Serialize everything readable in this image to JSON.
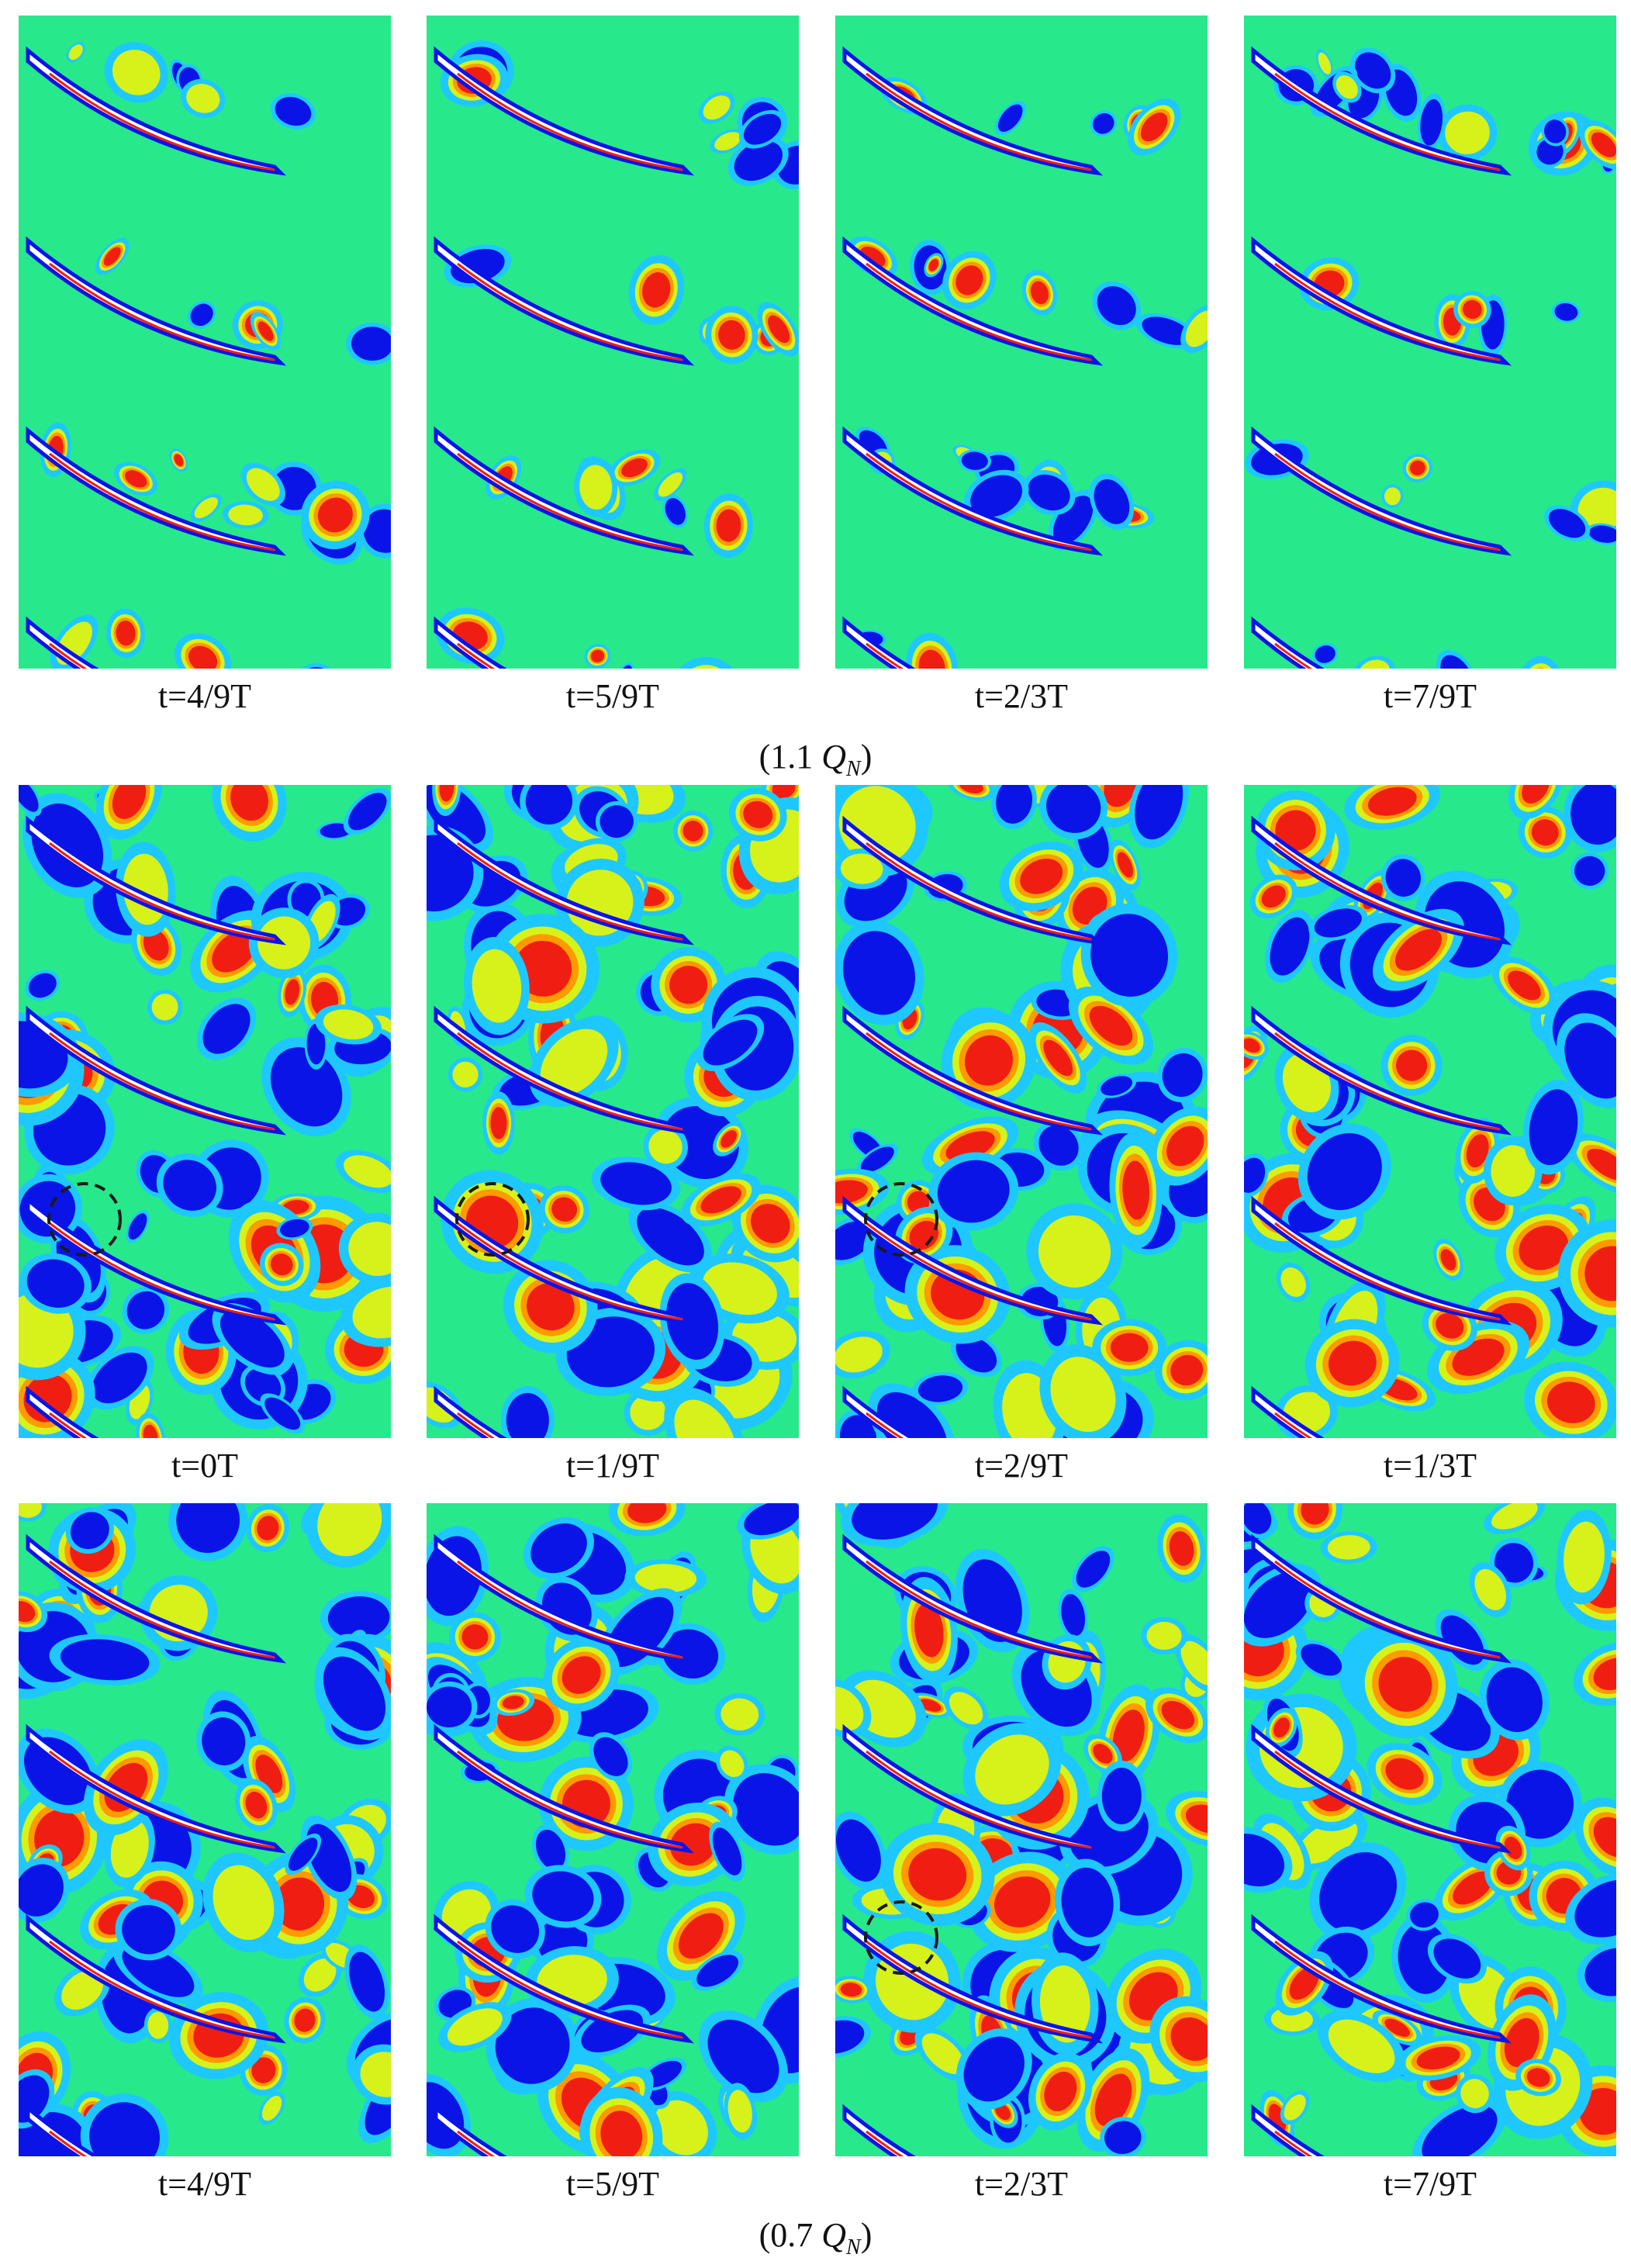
{
  "figure": {
    "rows": [
      {
        "id": "row-1",
        "captions": [
          "t=4/9T",
          "t=5/9T",
          "t=2/3T",
          "t=7/9T"
        ],
        "flow": "calm",
        "markers": []
      },
      {
        "id": "row-2",
        "captions": [
          "t=0T",
          "t=1/9T",
          "t=2/9T",
          "t=1/3T"
        ],
        "flow": "turbulent",
        "markers": [
          0,
          1,
          2
        ]
      },
      {
        "id": "row-3",
        "captions": [
          "t=4/9T",
          "t=5/9T",
          "t=2/3T",
          "t=7/9T"
        ],
        "flow": "turbulent",
        "markers": [
          2
        ]
      }
    ],
    "group_labels": [
      {
        "open": "(1.1 ",
        "symbol": "Q",
        "sub": "N",
        "close": ")"
      },
      {
        "open": "(0.7 ",
        "symbol": "Q",
        "sub": "N",
        "close": ")"
      }
    ]
  },
  "colors": {
    "background": "#27e88b",
    "low": "#0a14e6",
    "mid_low": "#1ec8ff",
    "mid_high": "#d6f21a",
    "high": "#f01e12",
    "blade": "#ffffff",
    "marker": "#1a1a1a"
  }
}
